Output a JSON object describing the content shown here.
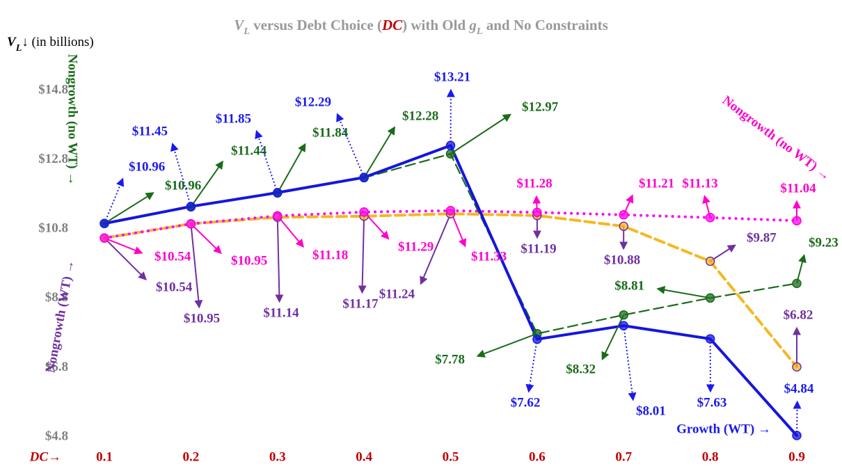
{
  "chart_data": {
    "type": "line",
    "title": [
      "V",
      "L",
      " versus Debt Choice (",
      "DC",
      ") with Old ",
      "g",
      "L",
      " and No Constraints"
    ],
    "y_label": [
      "V",
      "L",
      "↓ (in billions)"
    ],
    "x_label": "DC→",
    "categories": [
      "0.1",
      "0.2",
      "0.3",
      "0.4",
      "0.5",
      "0.6",
      "0.7",
      "0.8",
      "0.9"
    ],
    "ylim": [
      4.8,
      14.8
    ],
    "yticks": [
      {
        "value": 4.8,
        "label": "$4.8"
      },
      {
        "value": 6.8,
        "label": "$6.8"
      },
      {
        "value": 8.8,
        "label": "$8.8"
      },
      {
        "value": 10.8,
        "label": "$10.8"
      },
      {
        "value": 12.8,
        "label": "$12.8"
      },
      {
        "value": 14.8,
        "label": "$14.8"
      }
    ],
    "series": [
      {
        "name": "Nongrowth (WT) →",
        "color": "#f5b820",
        "label_color": "#7030a0",
        "dash": "dashed",
        "values": [
          10.54,
          10.95,
          11.14,
          11.17,
          11.24,
          11.19,
          10.88,
          9.87,
          6.82
        ],
        "value_labels": [
          "$10.54",
          "$10.95",
          "$11.14",
          "$11.17",
          "$11.24",
          "$11.19",
          "$10.88",
          "$9.87",
          "$6.82"
        ]
      },
      {
        "name": "Nongrowth (no WT) →",
        "color": "#ff00ff",
        "label_color": "#ff00cc",
        "dash": "dotted",
        "values": [
          10.54,
          10.95,
          11.18,
          11.29,
          11.33,
          11.28,
          11.21,
          11.13,
          11.04
        ],
        "value_labels": [
          "$10.54",
          "$10.95",
          "$11.18",
          "$11.29",
          "$11.33",
          "$11.28",
          "$11.21",
          "$11.13",
          "$11.04"
        ]
      },
      {
        "name": "Nongrowth (no WT) →",
        "color": "#1a6b1a",
        "label_color": "#1a6b1a",
        "dash": "dashed",
        "values": [
          10.96,
          11.44,
          11.84,
          12.28,
          12.97,
          7.78,
          8.32,
          8.81,
          9.23
        ],
        "value_labels": [
          "$10.96",
          "$11.44",
          "$11.84",
          "$12.28",
          "$12.97",
          "$7.78",
          "$8.32",
          "$8.81",
          "$9.23"
        ]
      },
      {
        "name": "Growth (WT) →",
        "color": "#1515e0",
        "label_color": "#1a1aee",
        "dash": "solid",
        "values": [
          10.96,
          11.45,
          11.85,
          12.29,
          13.21,
          7.62,
          8.01,
          7.63,
          4.84
        ],
        "value_labels": [
          "$10.96",
          "$11.45",
          "$11.85",
          "$12.29",
          "$13.21",
          "$7.62",
          "$8.01",
          "$7.63",
          "$4.84"
        ]
      }
    ]
  }
}
